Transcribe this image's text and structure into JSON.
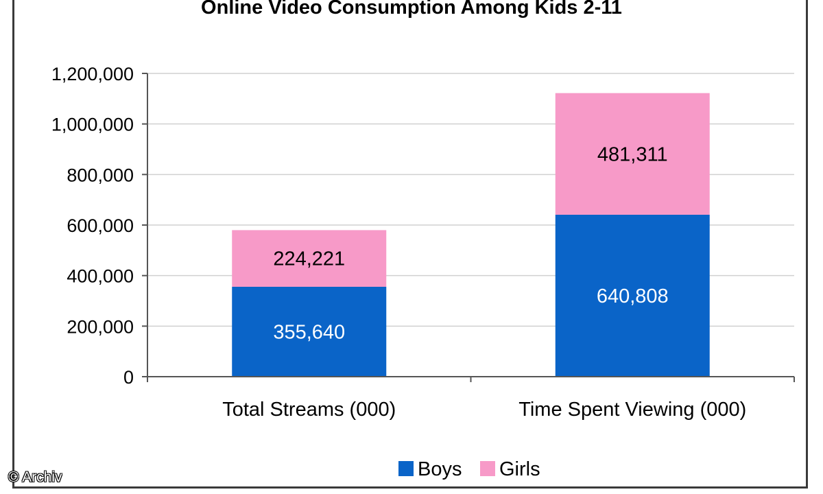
{
  "chart_data": {
    "type": "bar",
    "stacked": true,
    "title": "Online Video Consumption Among Kids 2-11",
    "categories": [
      "Total Streams (000)",
      "Time Spent Viewing (000)"
    ],
    "series": [
      {
        "name": "Boys",
        "values": [
          355640,
          640808
        ],
        "value_labels": [
          "355,640",
          "640,808"
        ],
        "color": "#0a64c8",
        "label_color": "#ffffff"
      },
      {
        "name": "Girls",
        "values": [
          224221,
          481311
        ],
        "value_labels": [
          "224,221",
          "481,311"
        ],
        "color": "#f79ac8",
        "label_color": "#000000"
      }
    ],
    "ylim": [
      0,
      1200000
    ],
    "yticks": [
      0,
      200000,
      400000,
      600000,
      800000,
      1000000,
      1200000
    ],
    "ytick_labels": [
      "0",
      "200,000",
      "400,000",
      "600,000",
      "800,000",
      "1,000,000",
      "1,200,000"
    ],
    "grid": true,
    "grid_color": "#d0d0d0",
    "legend_position": "bottom",
    "xlabel": "",
    "ylabel": ""
  },
  "watermark": "© Archiv"
}
